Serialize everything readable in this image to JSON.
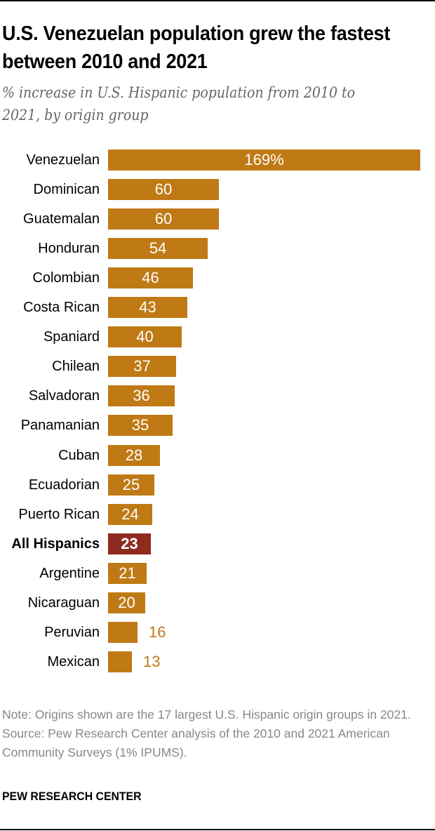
{
  "header": {
    "title": "U.S. Venezuelan population grew the fastest between 2010 and 2021",
    "subtitle": "% increase in U.S. Hispanic population from 2010 to 2021, by origin group"
  },
  "colors": {
    "bar": "#BF7A15",
    "highlight": "#8E2B1E",
    "outside_label": "#BF7A15"
  },
  "chart_data": {
    "type": "bar",
    "orientation": "horizontal",
    "title": "U.S. Venezuelan population grew the fastest between 2010 and 2021",
    "subtitle": "% increase in U.S. Hispanic population from 2010 to 2021, by origin group",
    "xlabel": "",
    "ylabel": "",
    "unit": "%",
    "grid": false,
    "legend": null,
    "categories": [
      "Venezuelan",
      "Dominican",
      "Guatemalan",
      "Honduran",
      "Colombian",
      "Costa Rican",
      "Spaniard",
      "Chilean",
      "Salvadoran",
      "Panamanian",
      "Cuban",
      "Ecuadorian",
      "Puerto Rican",
      "All Hispanics",
      "Argentine",
      "Nicaraguan",
      "Peruvian",
      "Mexican"
    ],
    "values": [
      169,
      60,
      60,
      54,
      46,
      43,
      40,
      37,
      36,
      35,
      28,
      25,
      24,
      23,
      21,
      20,
      16,
      13
    ],
    "value_labels": [
      "169%",
      "60",
      "60",
      "54",
      "46",
      "43",
      "40",
      "37",
      "36",
      "35",
      "28",
      "25",
      "24",
      "23",
      "21",
      "20",
      "16",
      "13"
    ],
    "highlighted": [
      "All Hispanics"
    ]
  },
  "footer": {
    "note": "Note: Origins shown are the 17 largest U.S. Hispanic origin groups in 2021.",
    "source": "Source: Pew Research Center analysis of the 2010 and 2021 American Community Surveys (1% IPUMS).",
    "brand": "PEW RESEARCH CENTER"
  }
}
